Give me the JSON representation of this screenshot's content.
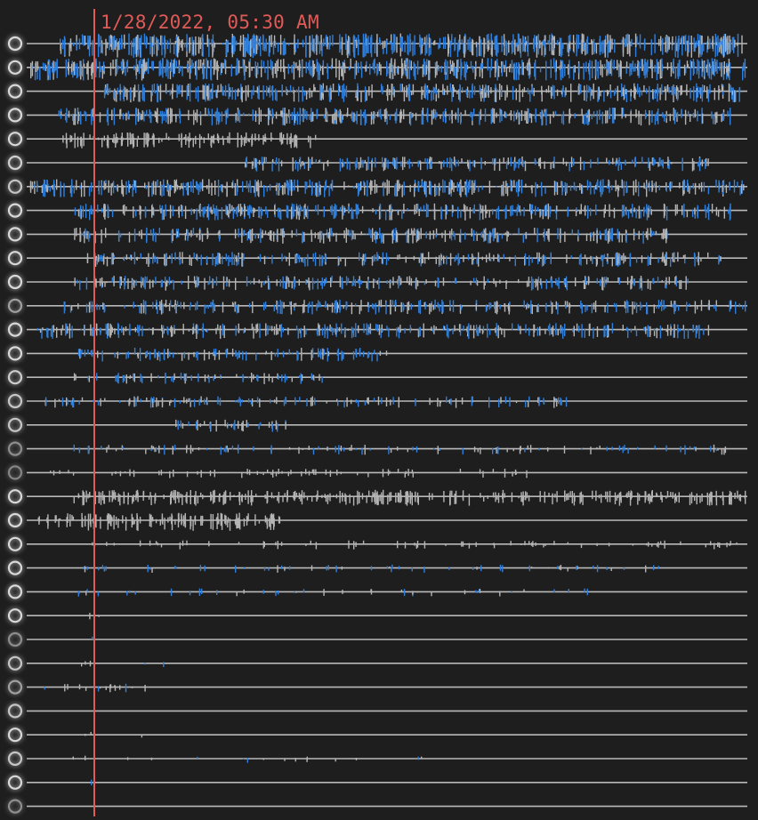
{
  "cursor": {
    "timestamp_label": "1/28/2022, 05:30 AM"
  },
  "colors": {
    "background": "#1e1e1e",
    "baseline": "#b9b9b9",
    "cursor": "#e05a57",
    "activity_primary": "#2f7fdc",
    "activity_secondary": "#b4b4b4",
    "row_toggle": "#d8d8d8"
  },
  "icons": {
    "row_toggle": "circle-outline-icon"
  },
  "rows": [
    {
      "id": 1,
      "density": 0.85,
      "start": 0.04,
      "end": 1.0,
      "blue": 0.65,
      "toggle_opacity": 1.0
    },
    {
      "id": 2,
      "density": 0.75,
      "start": 0.0,
      "end": 1.0,
      "blue": 0.6,
      "toggle_opacity": 1.0
    },
    {
      "id": 3,
      "density": 0.6,
      "start": 0.1,
      "end": 1.0,
      "blue": 0.5,
      "toggle_opacity": 1.0
    },
    {
      "id": 4,
      "density": 0.55,
      "start": 0.04,
      "end": 0.98,
      "blue": 0.55,
      "toggle_opacity": 1.0
    },
    {
      "id": 5,
      "density": 0.45,
      "start": 0.04,
      "end": 0.4,
      "blue": 0.0,
      "toggle_opacity": 1.0
    },
    {
      "id": 6,
      "density": 0.4,
      "start": 0.3,
      "end": 0.95,
      "blue": 0.55,
      "toggle_opacity": 0.95
    },
    {
      "id": 7,
      "density": 0.55,
      "start": 0.0,
      "end": 1.0,
      "blue": 0.55,
      "toggle_opacity": 0.9
    },
    {
      "id": 8,
      "density": 0.5,
      "start": 0.06,
      "end": 0.98,
      "blue": 0.6,
      "toggle_opacity": 1.0
    },
    {
      "id": 9,
      "density": 0.45,
      "start": 0.06,
      "end": 0.9,
      "blue": 0.45,
      "toggle_opacity": 1.0
    },
    {
      "id": 10,
      "density": 0.4,
      "start": 0.08,
      "end": 0.97,
      "blue": 0.55,
      "toggle_opacity": 1.0
    },
    {
      "id": 11,
      "density": 0.4,
      "start": 0.06,
      "end": 0.92,
      "blue": 0.5,
      "toggle_opacity": 1.0
    },
    {
      "id": 12,
      "density": 0.4,
      "start": 0.04,
      "end": 1.0,
      "blue": 0.6,
      "toggle_opacity": 0.7
    },
    {
      "id": 13,
      "density": 0.45,
      "start": 0.0,
      "end": 0.95,
      "blue": 0.55,
      "toggle_opacity": 1.0
    },
    {
      "id": 14,
      "density": 0.35,
      "start": 0.06,
      "end": 0.5,
      "blue": 0.6,
      "toggle_opacity": 1.0
    },
    {
      "id": 15,
      "density": 0.25,
      "start": 0.06,
      "end": 0.42,
      "blue": 0.6,
      "toggle_opacity": 0.95
    },
    {
      "id": 16,
      "density": 0.25,
      "start": 0.02,
      "end": 0.75,
      "blue": 0.55,
      "toggle_opacity": 0.9
    },
    {
      "id": 17,
      "density": 0.3,
      "start": 0.2,
      "end": 0.36,
      "blue": 0.55,
      "toggle_opacity": 0.9
    },
    {
      "id": 18,
      "density": 0.18,
      "start": 0.06,
      "end": 0.98,
      "blue": 0.55,
      "toggle_opacity": 0.6
    },
    {
      "id": 19,
      "density": 0.14,
      "start": 0.02,
      "end": 0.7,
      "blue": 0.0,
      "toggle_opacity": 0.55
    },
    {
      "id": 20,
      "density": 0.45,
      "start": 0.06,
      "end": 1.0,
      "blue": 0.0,
      "toggle_opacity": 1.0
    },
    {
      "id": 21,
      "density": 0.55,
      "start": 0.01,
      "end": 0.35,
      "blue": 0.0,
      "toggle_opacity": 1.0
    },
    {
      "id": 22,
      "density": 0.12,
      "start": 0.08,
      "end": 1.0,
      "blue": 0.0,
      "toggle_opacity": 1.0
    },
    {
      "id": 23,
      "density": 0.1,
      "start": 0.06,
      "end": 0.9,
      "blue": 0.65,
      "toggle_opacity": 1.0
    },
    {
      "id": 24,
      "density": 0.08,
      "start": 0.06,
      "end": 0.85,
      "blue": 0.6,
      "toggle_opacity": 1.0
    },
    {
      "id": 25,
      "density": 0.05,
      "start": 0.06,
      "end": 0.12,
      "blue": 0.3,
      "toggle_opacity": 1.0
    },
    {
      "id": 26,
      "density": 0.06,
      "start": 0.06,
      "end": 0.09,
      "blue": 0.8,
      "toggle_opacity": 0.6
    },
    {
      "id": 27,
      "density": 0.05,
      "start": 0.06,
      "end": 0.2,
      "blue": 0.6,
      "toggle_opacity": 0.9
    },
    {
      "id": 28,
      "density": 0.12,
      "start": 0.02,
      "end": 0.2,
      "blue": 0.2,
      "toggle_opacity": 0.7
    },
    {
      "id": 29,
      "density": 0.04,
      "start": 0.06,
      "end": 0.1,
      "blue": 0.3,
      "toggle_opacity": 0.9
    },
    {
      "id": 30,
      "density": 0.03,
      "start": 0.06,
      "end": 0.2,
      "blue": 0.0,
      "toggle_opacity": 1.0
    },
    {
      "id": 31,
      "density": 0.04,
      "start": 0.06,
      "end": 0.6,
      "blue": 0.2,
      "toggle_opacity": 0.9
    },
    {
      "id": 32,
      "density": 0.04,
      "start": 0.06,
      "end": 0.1,
      "blue": 0.6,
      "toggle_opacity": 1.0
    },
    {
      "id": 33,
      "density": 0.0,
      "start": 0.0,
      "end": 0.0,
      "blue": 0.0,
      "toggle_opacity": 0.6
    }
  ]
}
